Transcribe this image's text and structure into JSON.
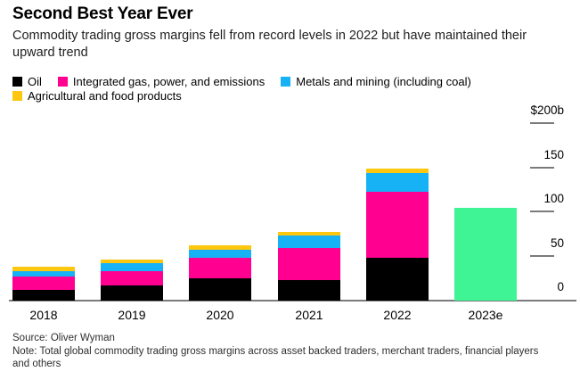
{
  "header": {
    "title": "Second Best Year Ever",
    "subtitle": "Commodity trading gross margins fell from record levels in 2022 but have maintained their upward trend"
  },
  "legend": {
    "items": [
      {
        "label": "Oil",
        "color": "#000000",
        "row": 0
      },
      {
        "label": "Integrated gas, power, and emissions",
        "color": "#ff0090",
        "row": 0
      },
      {
        "label": "Metals and mining (including coal)",
        "color": "#17b2f5",
        "row": 0
      },
      {
        "label": "Agricultural and food products",
        "color": "#fdc60f",
        "row": 1
      }
    ]
  },
  "chart_data": {
    "type": "bar",
    "stacked": true,
    "unit": "billions of US dollars",
    "categories": [
      "2018",
      "2019",
      "2020",
      "2021",
      "2022",
      "2023e"
    ],
    "series": [
      {
        "name": "Oil",
        "color": "#000000",
        "values": [
          12,
          17,
          25,
          23,
          49,
          null
        ]
      },
      {
        "name": "Integrated gas, power, and emissions",
        "color": "#ff0090",
        "values": [
          15,
          16,
          23,
          37,
          74,
          null
        ]
      },
      {
        "name": "Metals and mining (including coal)",
        "color": "#17b2f5",
        "values": [
          6,
          9,
          10,
          14,
          21,
          null
        ]
      },
      {
        "name": "Agricultural and food products",
        "color": "#fdc60f",
        "values": [
          5,
          4,
          5,
          4,
          6,
          null
        ]
      }
    ],
    "estimate": {
      "category": "2023e",
      "total": 105,
      "color": "#3ef494",
      "note": "single unsegmented estimate bar"
    },
    "totals": [
      38,
      46,
      63,
      78,
      150,
      105
    ],
    "yticks": [
      {
        "label": "$200b",
        "value": 200
      },
      {
        "label": "150",
        "value": 150
      },
      {
        "label": "100",
        "value": 100
      },
      {
        "label": "50",
        "value": 50
      },
      {
        "label": "0",
        "value": 0
      }
    ],
    "ylim": [
      0,
      200
    ],
    "y_axis_side": "right",
    "grid": "tick-stubs-right-only",
    "legend_position": "top"
  },
  "footer": {
    "source": "Source: Oliver Wyman",
    "note": "Note: Total global commodity trading gross margins across asset backed traders, merchant traders, financial players and others"
  },
  "style": {
    "background": "#ffffff",
    "axis_line_color": "#7b7b7b",
    "text_color": "#000000"
  }
}
